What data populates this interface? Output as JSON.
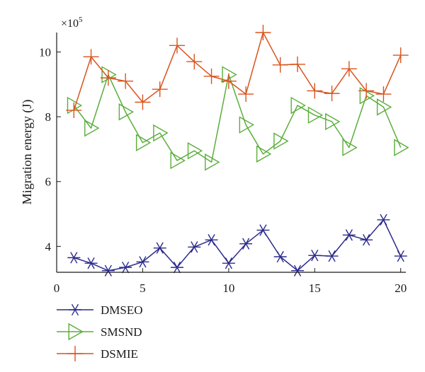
{
  "chart_data": {
    "type": "line",
    "xlabel": "",
    "ylabel": "Migration energy (J)",
    "y_exponent_label": "×10",
    "y_exponent_power": "5",
    "xlim": [
      0,
      20.3
    ],
    "ylim": [
      3.2,
      10.6
    ],
    "xticks": [
      0,
      5,
      10,
      15,
      20
    ],
    "yticks": [
      4,
      6,
      8,
      10
    ],
    "grid": false,
    "legend_position": "bottom-left, below plot",
    "x": [
      1,
      2,
      3,
      4,
      5,
      6,
      7,
      8,
      9,
      10,
      11,
      12,
      13,
      14,
      15,
      16,
      17,
      18,
      19,
      20
    ],
    "series": [
      {
        "name": "DMSEO",
        "color": "#2b2a8c",
        "marker": "asterisk",
        "values": [
          3.65,
          3.48,
          3.25,
          3.35,
          3.52,
          3.95,
          3.35,
          3.98,
          4.2,
          3.48,
          4.08,
          4.5,
          3.68,
          3.25,
          3.72,
          3.7,
          4.35,
          4.2,
          4.82,
          3.7
        ]
      },
      {
        "name": "SMSND",
        "color": "#5aae3a",
        "marker": "triangle-right",
        "values": [
          8.35,
          7.65,
          9.3,
          8.15,
          7.2,
          7.5,
          6.65,
          6.95,
          6.6,
          9.3,
          7.75,
          6.85,
          7.25,
          8.35,
          8.05,
          7.85,
          7.05,
          8.65,
          8.3,
          7.05
        ]
      },
      {
        "name": "DSMIE",
        "color": "#d9541e",
        "marker": "plus",
        "values": [
          8.2,
          9.85,
          9.2,
          9.1,
          8.45,
          8.85,
          10.2,
          9.7,
          9.25,
          9.1,
          8.7,
          10.6,
          9.6,
          9.62,
          8.8,
          8.72,
          9.48,
          8.8,
          8.7,
          9.9
        ]
      }
    ]
  }
}
